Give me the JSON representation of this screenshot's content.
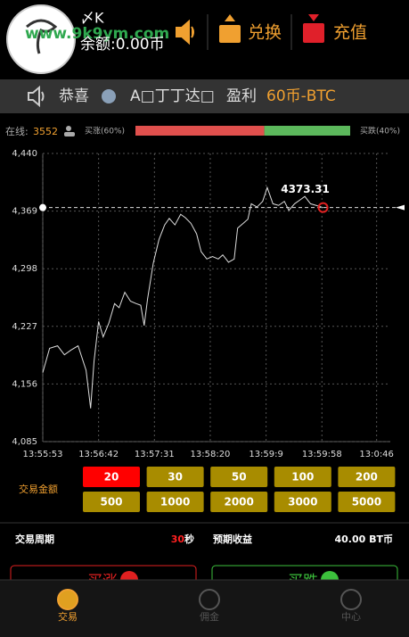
{
  "header": {
    "watermark": "www.9k9ym.com",
    "username": "〆K",
    "balance": "余额:0.00币",
    "exchange": "兑换",
    "recharge": "充值"
  },
  "banner": {
    "congrats": "恭喜",
    "user": "A□丁丁达□",
    "profit": "盈利",
    "amount": "60币-BTC"
  },
  "sentiment": {
    "online_label": "在线:",
    "online": 3552,
    "buy_up_label": "买涨(60%)",
    "buy_up": 60,
    "buy_down_label": "买跌(40%)",
    "buy_down": 40
  },
  "chart_data": {
    "type": "line",
    "color": "#dddddd",
    "grid": true,
    "x": [
      0,
      6,
      13,
      19,
      25,
      31,
      38,
      42,
      45,
      49,
      53,
      58,
      63,
      67,
      72,
      77,
      82,
      86,
      89,
      92,
      97,
      102,
      107,
      111,
      116,
      121,
      125,
      130,
      135,
      139,
      144,
      149,
      154,
      158,
      163,
      168,
      171,
      176,
      180,
      183,
      188,
      193,
      197,
      202,
      207,
      212,
      216,
      221,
      226,
      230,
      235,
      240,
      246
    ],
    "values": [
      4170,
      4200,
      4203,
      4192,
      4198,
      4203,
      4173,
      4126,
      4184,
      4233,
      4214,
      4231,
      4255,
      4250,
      4269,
      4258,
      4255,
      4253,
      4228,
      4261,
      4305,
      4334,
      4352,
      4360,
      4352,
      4365,
      4361,
      4354,
      4341,
      4319,
      4310,
      4313,
      4310,
      4315,
      4306,
      4310,
      4348,
      4354,
      4359,
      4378,
      4374,
      4381,
      4398,
      4378,
      4376,
      4381,
      4370,
      4378,
      4383,
      4387,
      4378,
      4376,
      4373.31
    ],
    "xlim": [
      0,
      305
    ],
    "ylim": [
      4085,
      4440
    ],
    "xticks": [
      {
        "value": 0,
        "label": "13:55:53"
      },
      {
        "value": 49,
        "label": "13:56:42"
      },
      {
        "value": 98,
        "label": "13:57:31"
      },
      {
        "value": 147,
        "label": "13:58:20"
      },
      {
        "value": 196,
        "label": "13:59:9"
      },
      {
        "value": 245,
        "label": "13:59:58"
      },
      {
        "value": 293,
        "label": "13:0:46"
      }
    ],
    "yticks": [
      {
        "value": 4085,
        "label": "4,085"
      },
      {
        "value": 4156,
        "label": "4,156"
      },
      {
        "value": 4227,
        "label": "4,227"
      },
      {
        "value": 4298,
        "label": "4,298"
      },
      {
        "value": 4369,
        "label": "4,369"
      },
      {
        "value": 4440,
        "label": "4,440"
      }
    ]
  },
  "trade": {
    "amount_label": "交易金额",
    "amounts": [
      20,
      30,
      50,
      100,
      200,
      500,
      1000,
      2000,
      3000,
      5000
    ],
    "selected": 20,
    "period_label": "交易周期",
    "period": 30,
    "period_unit": "秒",
    "expected_label": "预期收益",
    "expected": "40.00 BT币",
    "buy_up": "买涨",
    "buy_down": "买跌"
  },
  "tabs": [
    {
      "label": "交易",
      "active": true
    },
    {
      "label": "佣金",
      "active": false
    },
    {
      "label": "中心",
      "active": false
    }
  ]
}
